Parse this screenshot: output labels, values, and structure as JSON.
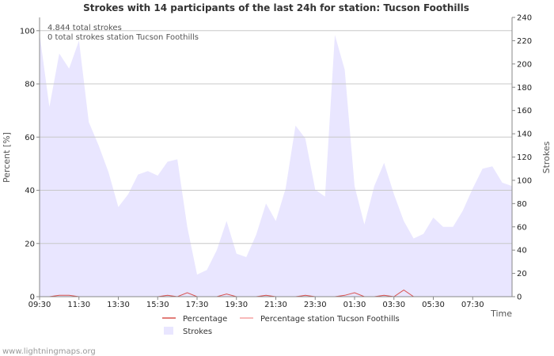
{
  "colors": {
    "strokes_fill": "#E9E6FF",
    "percentage": "#D9534F",
    "percentage_station": "#F5A3A3",
    "grid": "#C8C8C8",
    "axis": "#888888"
  },
  "chart_data": {
    "type": "area",
    "title": "Strokes with 14 participants of the last 24h for station: Tucson Foothills",
    "info": [
      "4.844 total strokes",
      "0 total strokes station Tucson Foothills"
    ],
    "xlabel": "Time",
    "ylabel_left": "Percent   [%]",
    "ylabel_right": "Strokes",
    "x_domain": [
      0,
      24
    ],
    "ylim_left": [
      0,
      105
    ],
    "ylim_right": [
      0,
      240
    ],
    "left_ticks": [
      "0",
      "20",
      "40",
      "60",
      "80",
      "100"
    ],
    "left_tick_values": [
      0,
      20,
      40,
      60,
      80,
      100
    ],
    "right_ticks": [
      "0",
      "20",
      "40",
      "60",
      "80",
      "100",
      "120",
      "140",
      "160",
      "180",
      "200",
      "220",
      "240"
    ],
    "right_tick_values": [
      0,
      20,
      40,
      60,
      80,
      100,
      120,
      140,
      160,
      180,
      200,
      220,
      240
    ],
    "x_tick_labels": [
      "09:30",
      "11:30",
      "13:30",
      "15:30",
      "17:30",
      "19:30",
      "21:30",
      "23:30",
      "01:30",
      "03:30",
      "05:30",
      "07:30"
    ],
    "x_tick_positions": [
      0,
      2,
      4,
      6,
      8,
      10,
      12,
      14,
      16,
      18,
      20,
      22
    ],
    "legend": [
      "Percentage",
      "Percentage station Tucson Foothills",
      "Strokes"
    ],
    "strokes_series": {
      "name": "Strokes",
      "x": [
        0,
        0.5,
        1,
        1.5,
        2,
        2.5,
        3,
        3.5,
        4,
        4.5,
        5,
        5.5,
        6,
        6.5,
        7,
        7.5,
        8,
        8.5,
        9,
        9.5,
        10,
        10.5,
        11,
        11.5,
        12,
        12.5,
        13,
        13.5,
        14,
        14.5,
        15,
        15.5,
        16,
        16.5,
        17,
        17.5,
        18,
        18.5,
        19,
        19.5,
        20,
        20.5,
        21,
        21.5,
        22,
        22.5,
        23,
        23.5,
        24
      ],
      "values": [
        226,
        163,
        209,
        196,
        220,
        150,
        130,
        107,
        77,
        88,
        105,
        108,
        104,
        116,
        118,
        60,
        19,
        23,
        40,
        65,
        37,
        34,
        53,
        80,
        65,
        93,
        147,
        136,
        92,
        86,
        225,
        195,
        95,
        62,
        95,
        115,
        88,
        65,
        50,
        54,
        68,
        60,
        60,
        74,
        93,
        110,
        112,
        98,
        95
      ]
    },
    "percentage_series": {
      "name": "Percentage",
      "x": [
        0,
        0.5,
        1,
        1.5,
        2,
        2.5,
        3,
        3.5,
        4,
        4.5,
        5,
        5.5,
        6,
        6.5,
        7,
        7.5,
        8,
        8.5,
        9,
        9.5,
        10,
        10.5,
        11,
        11.5,
        12,
        12.5,
        13,
        13.5,
        14,
        14.5,
        15,
        15.5,
        16,
        16.5,
        17,
        17.5,
        18,
        18.5,
        19,
        19.5,
        20,
        20.5,
        21,
        21.5,
        22,
        22.5,
        23,
        23.5,
        24
      ],
      "values": [
        0,
        0,
        0.5,
        0.5,
        0,
        0,
        0,
        0,
        0,
        0,
        0,
        0,
        0,
        0.5,
        0,
        1.5,
        0,
        0,
        0,
        1,
        0,
        0,
        0,
        0.5,
        0,
        0,
        0,
        0.5,
        0,
        0,
        0,
        0.5,
        1.5,
        0,
        0,
        0.5,
        0,
        2.5,
        0,
        0,
        0,
        0,
        0,
        0,
        0,
        0,
        0,
        0,
        0
      ]
    },
    "station_series": {
      "name": "Percentage station Tucson Foothills",
      "x": [
        0,
        24
      ],
      "values": [
        0,
        0
      ]
    }
  },
  "footer": "www.lightningmaps.org"
}
